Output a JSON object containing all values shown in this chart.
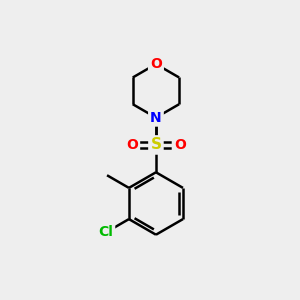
{
  "background_color": "#eeeeee",
  "atom_colors": {
    "C": "#000000",
    "N": "#0000ff",
    "O": "#ff0000",
    "S": "#cccc00",
    "Cl": "#00bb00"
  },
  "bond_color": "#000000",
  "bond_width": 1.8,
  "font_size": 10,
  "figsize": [
    3.0,
    3.0
  ],
  "dpi": 100
}
